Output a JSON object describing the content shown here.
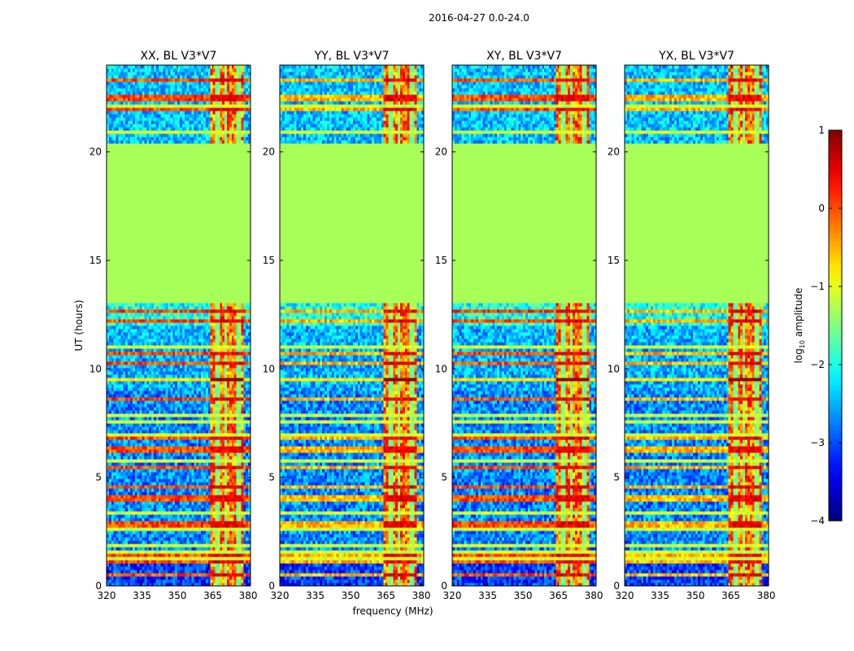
{
  "chart_data": {
    "type": "heatmap",
    "suptitle": "2016-04-27 0.0-24.0",
    "panels": [
      {
        "title": "XX, BL V3*V7"
      },
      {
        "title": "YY, BL V3*V7"
      },
      {
        "title": "XY, BL V3*V7"
      },
      {
        "title": "YX, BL V3*V7"
      }
    ],
    "xlabel": "frequency (MHz)",
    "ylabel": "UT (hours)",
    "xlim": [
      320,
      381
    ],
    "ylim": [
      0,
      24
    ],
    "xticks": [
      320,
      335,
      350,
      365,
      380
    ],
    "xtick_labels": [
      "320",
      "335",
      "350",
      "365",
      "380"
    ],
    "yticks": [
      0,
      5,
      10,
      15,
      20
    ],
    "ytick_labels": [
      "0",
      "5",
      "10",
      "15",
      "20"
    ],
    "colorbar": {
      "label_prefix": "log",
      "label_sub": "10",
      "label_suffix": " amplitude",
      "range": [
        -4,
        1
      ],
      "ticks": [
        -4,
        -3,
        -2,
        -1,
        0,
        1
      ],
      "tick_labels": [
        "−4",
        "−3",
        "−2",
        "−1",
        "0",
        "1"
      ],
      "colormap": "jet"
    },
    "features": {
      "flagged_block_ut": [
        13.1,
        20.4
      ],
      "flagged_value": -1.3,
      "rfi_band_mhz": [
        364,
        378
      ],
      "strong_line_ut": 9.5,
      "night_ut": [
        0,
        1.3
      ]
    }
  }
}
